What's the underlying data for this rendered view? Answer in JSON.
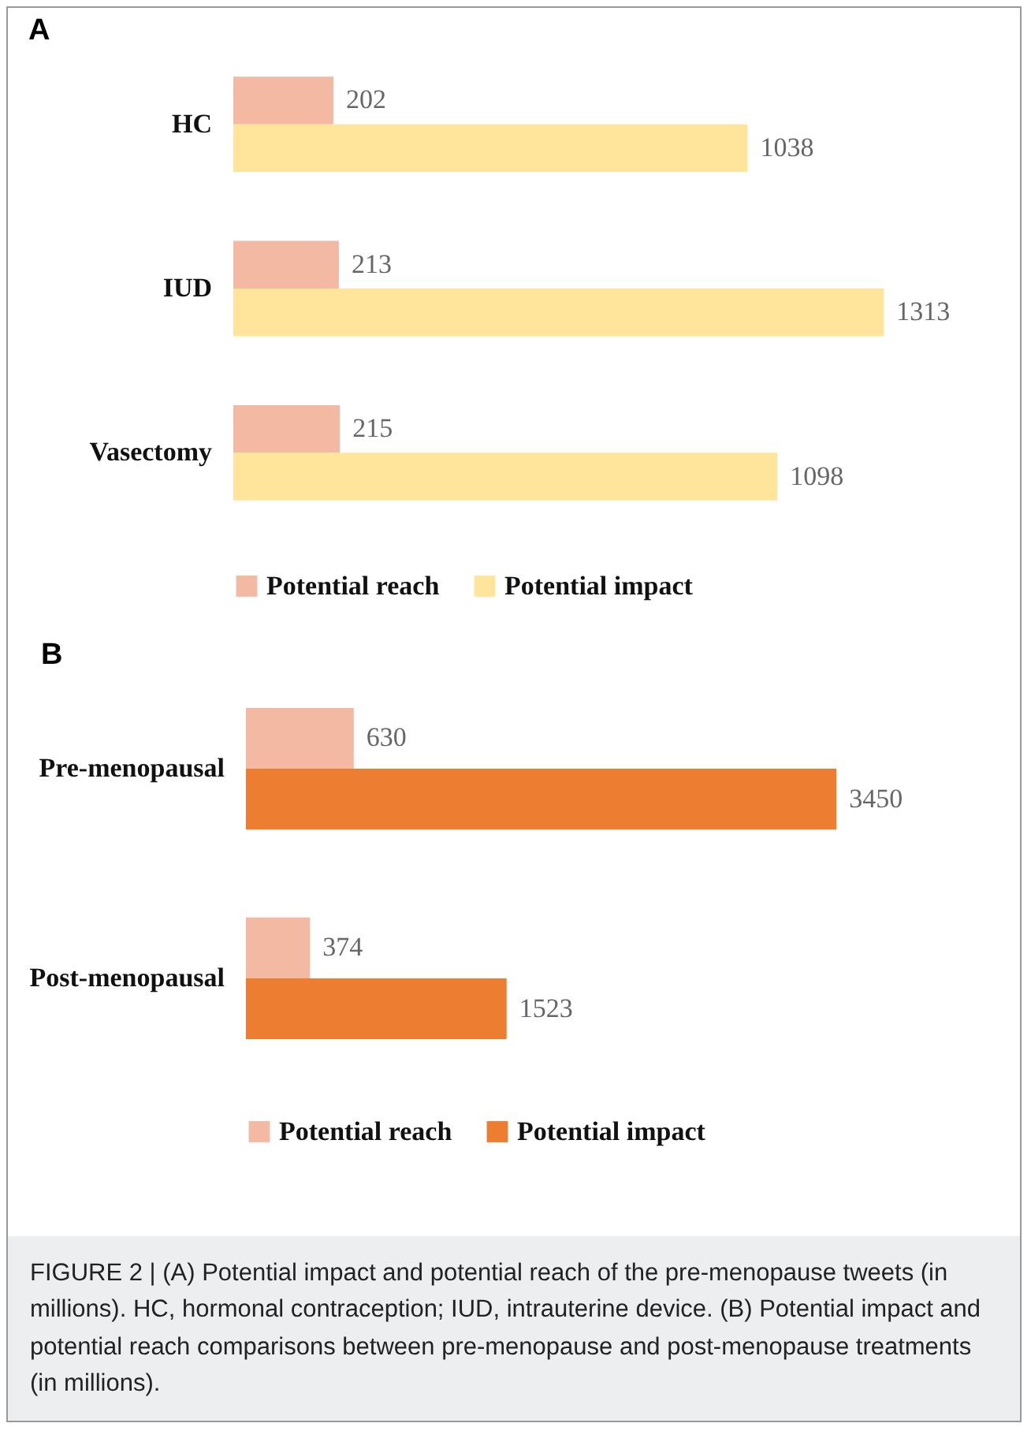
{
  "chart_data": [
    {
      "type": "bar",
      "orientation": "horizontal",
      "title": "A",
      "categories": [
        "HC",
        "IUD",
        "Vasectomy"
      ],
      "series": [
        {
          "name": "Potential reach",
          "color": "#f4b9a2",
          "values": [
            202,
            213,
            215
          ]
        },
        {
          "name": "Potential impact",
          "color": "#fee59b",
          "values": [
            1038,
            1313,
            1098
          ]
        }
      ],
      "data_labels": true,
      "legend": "bottom",
      "grid": false,
      "tick_labels": "y"
    },
    {
      "type": "bar",
      "orientation": "horizontal",
      "title": "B",
      "categories": [
        "Pre-menopausal",
        "Post-menopausal"
      ],
      "series": [
        {
          "name": "Potential reach",
          "color": "#f4b9a2",
          "values": [
            630,
            374
          ]
        },
        {
          "name": "Potential impact",
          "color": "#ed7d31",
          "values": [
            3450,
            1523
          ]
        }
      ],
      "data_labels": true,
      "legend": "bottom",
      "grid": false,
      "tick_labels": "y",
      "annotations": [
        "FIGURE 2 | (A) Potential impact and potential reach of the pre-menopause tweets (in millions). HC, hormonal contraception; IUD, intrauterine device. (B) Potential impact and potential reach comparisons between pre-menopause and post-menopause treatments (in millions)."
      ]
    }
  ]
}
